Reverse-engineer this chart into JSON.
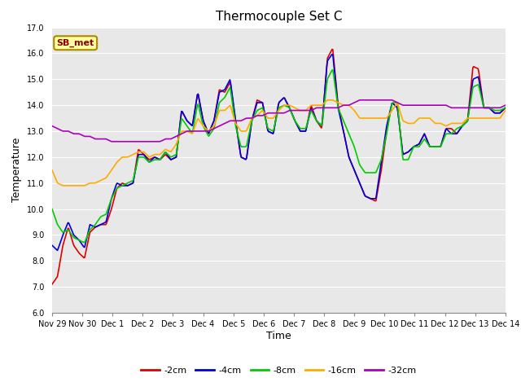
{
  "title": "Thermocouple Set C",
  "xlabel": "Time",
  "ylabel": "Temperature",
  "ylim": [
    6.0,
    17.0
  ],
  "yticks": [
    6.0,
    7.0,
    8.0,
    9.0,
    10.0,
    11.0,
    12.0,
    13.0,
    14.0,
    15.0,
    16.0,
    17.0
  ],
  "figure_bg": "#ffffff",
  "plot_bg": "#e8e8e8",
  "series_colors": {
    "-2cm": "#dd0000",
    "-4cm": "#0000dd",
    "-8cm": "#00cc00",
    "-16cm": "#ffaa00",
    "-32cm": "#aa00bb"
  },
  "legend_labels": [
    "-2cm",
    "-4cm",
    "-8cm",
    "-16cm",
    "-32cm"
  ],
  "xtick_labels": [
    "Nov 29",
    "Nov 30",
    "Dec 1",
    "Dec 2",
    "Dec 3",
    "Dec 4",
    "Dec 5",
    "Dec 6",
    "Dec 7",
    "Dec 8",
    "Dec 9",
    "Dec 10",
    "Dec 11",
    "Dec 12",
    "Dec 13",
    "Dec 14"
  ],
  "annotation_text": "SB_met",
  "grid_color": "#ffffff",
  "title_fontsize": 11,
  "tick_fontsize": 7,
  "ylabel_fontsize": 9,
  "xlabel_fontsize": 9,
  "linewidth": 1.2,
  "s2cm": [
    7.1,
    7.4,
    8.6,
    9.3,
    8.6,
    8.3,
    8.1,
    9.1,
    9.3,
    9.4,
    9.4,
    10.0,
    10.8,
    11.0,
    10.9,
    11.0,
    12.3,
    12.1,
    11.9,
    12.0,
    11.9,
    12.1,
    11.9,
    12.0,
    13.8,
    13.4,
    13.2,
    14.5,
    13.4,
    12.9,
    13.4,
    14.6,
    14.5,
    14.9,
    13.4,
    12.0,
    11.9,
    13.4,
    14.2,
    14.1,
    13.0,
    12.9,
    14.1,
    14.3,
    13.9,
    13.4,
    13.0,
    13.0,
    14.0,
    13.4,
    13.1,
    15.8,
    16.2,
    14.0,
    13.0,
    12.0,
    11.5,
    11.0,
    10.5,
    10.4,
    10.3,
    11.5,
    13.0,
    14.1,
    13.9,
    12.1,
    12.2,
    12.4,
    12.5,
    12.9,
    12.4,
    12.4,
    12.4,
    13.1,
    13.1,
    12.9,
    13.2,
    13.4,
    15.5,
    15.4,
    13.9,
    13.9,
    13.7,
    13.7,
    13.9
  ],
  "s4cm": [
    8.6,
    8.4,
    9.0,
    9.5,
    9.0,
    8.8,
    8.5,
    9.4,
    9.3,
    9.4,
    9.5,
    10.4,
    11.0,
    10.9,
    10.9,
    11.0,
    12.1,
    12.1,
    11.8,
    12.0,
    11.9,
    12.2,
    11.9,
    12.0,
    13.8,
    13.4,
    13.2,
    14.5,
    13.4,
    12.9,
    13.4,
    14.5,
    14.6,
    15.0,
    13.4,
    12.0,
    11.9,
    13.4,
    14.1,
    14.1,
    13.0,
    12.9,
    14.1,
    14.3,
    13.9,
    13.4,
    13.0,
    13.0,
    13.9,
    13.4,
    13.2,
    15.7,
    16.0,
    13.9,
    13.0,
    12.0,
    11.5,
    11.0,
    10.5,
    10.4,
    10.4,
    11.8,
    13.2,
    14.1,
    13.9,
    12.1,
    12.2,
    12.4,
    12.5,
    12.9,
    12.4,
    12.4,
    12.4,
    13.1,
    12.9,
    12.9,
    13.2,
    13.4,
    15.0,
    15.1,
    13.9,
    13.9,
    13.7,
    13.7,
    13.9
  ],
  "s8cm": [
    10.0,
    9.4,
    9.1,
    9.2,
    8.9,
    8.8,
    8.7,
    9.2,
    9.4,
    9.7,
    9.8,
    10.4,
    10.8,
    10.9,
    11.0,
    11.1,
    12.0,
    12.0,
    11.8,
    11.9,
    11.9,
    12.2,
    12.0,
    12.1,
    13.5,
    13.2,
    12.9,
    14.1,
    13.2,
    12.8,
    13.1,
    14.1,
    14.3,
    14.7,
    13.2,
    12.4,
    12.4,
    13.4,
    13.8,
    13.9,
    13.1,
    13.0,
    13.9,
    14.0,
    13.9,
    13.4,
    13.1,
    13.1,
    13.8,
    13.4,
    13.2,
    15.0,
    15.4,
    13.9,
    13.4,
    12.9,
    12.4,
    11.7,
    11.4,
    11.4,
    11.4,
    11.9,
    12.9,
    14.1,
    14.1,
    11.9,
    11.9,
    12.4,
    12.4,
    12.7,
    12.4,
    12.4,
    12.4,
    12.9,
    12.9,
    13.1,
    13.2,
    13.4,
    14.7,
    14.8,
    13.9,
    13.9,
    13.8,
    13.8,
    13.9
  ],
  "s16cm": [
    11.5,
    11.0,
    10.9,
    10.9,
    10.9,
    10.9,
    10.9,
    11.0,
    11.0,
    11.1,
    11.2,
    11.5,
    11.8,
    12.0,
    12.0,
    12.1,
    12.2,
    12.2,
    12.0,
    12.1,
    12.1,
    12.3,
    12.2,
    12.5,
    13.0,
    13.0,
    12.9,
    13.5,
    13.2,
    13.0,
    13.2,
    13.8,
    13.8,
    14.0,
    13.3,
    13.0,
    13.0,
    13.5,
    13.6,
    13.8,
    13.5,
    13.5,
    13.8,
    14.0,
    14.0,
    13.9,
    13.8,
    13.8,
    14.0,
    14.0,
    14.0,
    14.2,
    14.2,
    14.1,
    14.0,
    14.0,
    13.8,
    13.5,
    13.5,
    13.5,
    13.5,
    13.5,
    13.5,
    13.8,
    14.1,
    13.4,
    13.3,
    13.3,
    13.5,
    13.5,
    13.5,
    13.3,
    13.3,
    13.2,
    13.3,
    13.3,
    13.3,
    13.5,
    13.5,
    13.5,
    13.5,
    13.5,
    13.5,
    13.5,
    13.8
  ],
  "s32cm": [
    13.2,
    13.1,
    13.0,
    13.0,
    12.9,
    12.9,
    12.8,
    12.8,
    12.7,
    12.7,
    12.7,
    12.6,
    12.6,
    12.6,
    12.6,
    12.6,
    12.6,
    12.6,
    12.6,
    12.6,
    12.6,
    12.7,
    12.7,
    12.8,
    12.9,
    13.0,
    13.0,
    13.0,
    13.0,
    13.0,
    13.1,
    13.2,
    13.3,
    13.4,
    13.4,
    13.4,
    13.5,
    13.5,
    13.6,
    13.6,
    13.7,
    13.7,
    13.7,
    13.7,
    13.8,
    13.8,
    13.8,
    13.8,
    13.8,
    13.9,
    13.9,
    13.9,
    13.9,
    13.9,
    14.0,
    14.0,
    14.1,
    14.2,
    14.2,
    14.2,
    14.2,
    14.2,
    14.2,
    14.2,
    14.1,
    14.0,
    14.0,
    14.0,
    14.0,
    14.0,
    14.0,
    14.0,
    14.0,
    14.0,
    13.9,
    13.9,
    13.9,
    13.9,
    13.9,
    13.9,
    13.9,
    13.9,
    13.9,
    13.9,
    14.0
  ]
}
